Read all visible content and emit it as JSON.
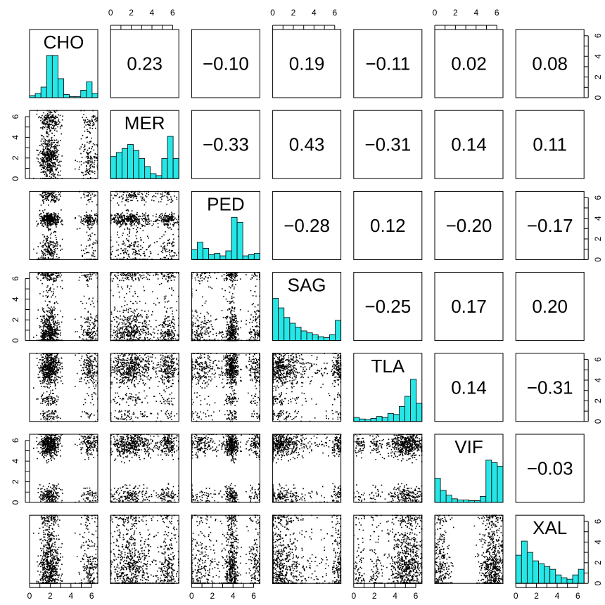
{
  "chart_data": {
    "type": "scatter",
    "variables": [
      "CHO",
      "MER",
      "PED",
      "SAG",
      "TLA",
      "VIF",
      "XAL"
    ],
    "axis_range": [
      0,
      6.6
    ],
    "ticks": [
      0,
      2,
      4,
      6
    ],
    "tick_labels": [
      "0",
      "2",
      "4",
      "6"
    ],
    "hist_color": "#26E6E6",
    "point_color": "#000000",
    "correlations": [
      {
        "row": 0,
        "col": 1,
        "value": 0.23,
        "text": "0.23"
      },
      {
        "row": 0,
        "col": 2,
        "value": -0.1,
        "text": "−0.10"
      },
      {
        "row": 0,
        "col": 3,
        "value": 0.19,
        "text": "0.19"
      },
      {
        "row": 0,
        "col": 4,
        "value": -0.11,
        "text": "−0.11"
      },
      {
        "row": 0,
        "col": 5,
        "value": 0.02,
        "text": "0.02"
      },
      {
        "row": 0,
        "col": 6,
        "value": 0.08,
        "text": "0.08"
      },
      {
        "row": 1,
        "col": 2,
        "value": -0.33,
        "text": "−0.33"
      },
      {
        "row": 1,
        "col": 3,
        "value": 0.43,
        "text": "0.43"
      },
      {
        "row": 1,
        "col": 4,
        "value": -0.31,
        "text": "−0.31"
      },
      {
        "row": 1,
        "col": 5,
        "value": 0.14,
        "text": "0.14"
      },
      {
        "row": 1,
        "col": 6,
        "value": 0.11,
        "text": "0.11"
      },
      {
        "row": 2,
        "col": 3,
        "value": -0.28,
        "text": "−0.28"
      },
      {
        "row": 2,
        "col": 4,
        "value": 0.12,
        "text": "0.12"
      },
      {
        "row": 2,
        "col": 5,
        "value": -0.2,
        "text": "−0.20"
      },
      {
        "row": 2,
        "col": 6,
        "value": -0.17,
        "text": "−0.17"
      },
      {
        "row": 3,
        "col": 4,
        "value": -0.25,
        "text": "−0.25"
      },
      {
        "row": 3,
        "col": 5,
        "value": 0.17,
        "text": "0.17"
      },
      {
        "row": 3,
        "col": 6,
        "value": 0.2,
        "text": "0.20"
      },
      {
        "row": 4,
        "col": 5,
        "value": 0.14,
        "text": "0.14"
      },
      {
        "row": 4,
        "col": 6,
        "value": -0.31,
        "text": "−0.31"
      },
      {
        "row": 5,
        "col": 6,
        "value": -0.03,
        "text": "−0.03"
      }
    ],
    "histograms": {
      "bin_edges": [
        0,
        0.55,
        1.1,
        1.65,
        2.2,
        2.75,
        3.3,
        3.85,
        4.4,
        4.95,
        5.5,
        6.05,
        6.6
      ],
      "CHO": [
        2,
        4,
        10,
        40,
        40,
        18,
        3,
        1,
        1,
        7,
        15,
        4
      ],
      "MER": [
        22,
        26,
        30,
        34,
        28,
        20,
        12,
        5,
        3,
        20,
        42,
        20
      ],
      "PED": [
        16,
        28,
        18,
        8,
        10,
        6,
        14,
        68,
        60,
        6,
        8,
        10
      ],
      "SAG": [
        44,
        34,
        24,
        18,
        14,
        10,
        8,
        6,
        4,
        3,
        6,
        21
      ],
      "TLA": [
        8,
        5,
        4,
        6,
        10,
        8,
        16,
        14,
        30,
        50,
        84,
        36
      ],
      "VIF": [
        40,
        20,
        12,
        6,
        4,
        4,
        3,
        3,
        10,
        70,
        66,
        60
      ],
      "XAL": [
        20,
        30,
        22,
        16,
        14,
        12,
        10,
        6,
        4,
        3,
        6,
        10
      ]
    },
    "marginals": {
      "CHO": [
        [
          1.9,
          0.5,
          0.76
        ],
        [
          5.8,
          0.45,
          0.24
        ]
      ],
      "MER": [
        [
          1.9,
          1.1,
          0.7
        ],
        [
          5.6,
          0.5,
          0.3
        ]
      ],
      "PED": [
        [
          3.85,
          0.35,
          0.5
        ],
        [
          1.0,
          0.9,
          0.3
        ],
        [
          6.2,
          0.4,
          0.2
        ]
      ],
      "SAG": [
        [
          0.6,
          0.9,
          0.7
        ],
        [
          3.4,
          1.4,
          0.15
        ],
        [
          6.3,
          0.3,
          0.15
        ]
      ],
      "TLA": [
        [
          5.4,
          0.7,
          0.6
        ],
        [
          2.2,
          0.35,
          0.1
        ],
        [
          4.2,
          0.5,
          0.2
        ],
        [
          0.5,
          0.3,
          0.1
        ]
      ],
      "VIF": [
        [
          0.6,
          0.5,
          0.3
        ],
        [
          5.6,
          0.6,
          0.7
        ]
      ],
      "XAL": [
        [
          1.2,
          1.2,
          0.7
        ],
        [
          4.2,
          1.2,
          0.2
        ],
        [
          6.3,
          0.3,
          0.1
        ]
      ]
    }
  }
}
